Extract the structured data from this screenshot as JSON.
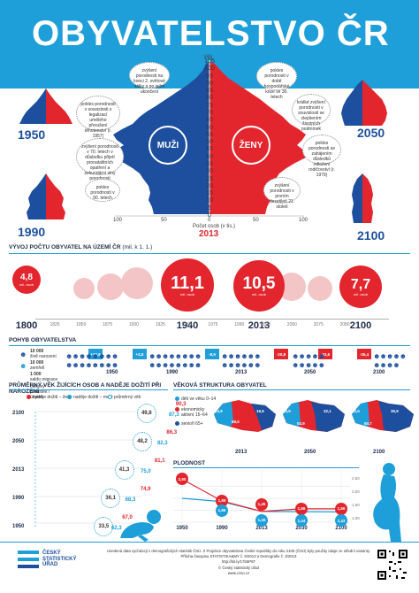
{
  "title": "OBYVATELSTVO ČR",
  "pyramid": {
    "men_label": "MUŽI",
    "women_label": "ŽENY",
    "age_axis_title": "Věk",
    "ages": [
      "105",
      "100",
      "95",
      "90",
      "85",
      "80",
      "75",
      "70",
      "65",
      "60",
      "55",
      "50",
      "45",
      "40",
      "35",
      "30",
      "25",
      "20",
      "15",
      "10",
      "5",
      "0"
    ],
    "bottom_axis": [
      "100",
      "50",
      "0",
      "50",
      "100"
    ],
    "bottom_axis_title": "Počet osob (v tis.)",
    "main_year": "2013",
    "corner_years": {
      "top_left": "1950",
      "top_right": "2050",
      "bottom_left": "1990",
      "bottom_right": "2100"
    },
    "notes": {
      "n1": "zvýšení porodnosti na konci 2. světové války a po jejím ukončení",
      "n2": "pokles porodnosti v souvislosti s legalizací umělého přerušení těhotenství (r. 1957)",
      "n3": "zvýšení porodnosti v 70. letech v důsledku přijetí pronatalitních opatření a sekundární vlny porodnosti",
      "n4": "pokles porodnosti v 90. letech",
      "n5": "pokles porodnosti v době hospodářské krize ve 30. letech",
      "n6": "krátké zvýšení porodnosti v souvislosti se zlepšením životních podmínek",
      "n7": "pokles porodnosti se zahájením důsledků odložení rodičovství (r. 1979)",
      "n8": "zvýšení porodnosti v prvním desetiletí 21. století"
    }
  },
  "timeline": {
    "title": "VÝVOJ POČTU OBYVATEL NA ÚZEMÍ ČR",
    "subtitle": "(mil. k 1. 1.)",
    "years_small": [
      "1825",
      "1850",
      "1875",
      "1900",
      "1925",
      "1950",
      "1975",
      "1990",
      "2025",
      "2050",
      "2075",
      "2080"
    ],
    "years_big": [
      "1800",
      "1940",
      "2013",
      "2100"
    ],
    "bubbles": [
      {
        "value": "4,8",
        "unit": "mil. osob"
      },
      {
        "value": "11,1",
        "unit": "mil. osob"
      },
      {
        "value": "10,5",
        "unit": "mil. osob"
      },
      {
        "value": "7,7",
        "unit": "mil. osob"
      }
    ]
  },
  "movement": {
    "title": "POHYB OBYVATELSTVA",
    "legend": [
      {
        "num": "10 000",
        "text": "živě narození"
      },
      {
        "num": "10 000",
        "text": "zemřelí"
      },
      {
        "num": "1 000",
        "text": "saldo migrace"
      },
      {
        "num": "",
        "text": "celkový přírůstek / úbytek"
      }
    ],
    "flags": [
      "+10,6",
      "+4,8",
      "-8,9",
      "-20,8",
      "-33,6",
      "-35,4"
    ],
    "years": [
      "1950",
      "1990",
      "2013",
      "2050",
      "2100"
    ]
  },
  "ages_section": {
    "title": "PRŮMĚRNÝ VĚK ŽIJÍCÍCH OSOB A NADĚJE DOŽITÍ PŘI NAROZENÍ",
    "legend": [
      "naděje dožití – ženy",
      "naděje dožití – muži",
      "průměrný věk"
    ],
    "rows": [
      {
        "year": "2100",
        "women": "90,3",
        "men": "87,3",
        "avg": "49,8"
      },
      {
        "year": "2050",
        "women": "86,3",
        "men": "82,3",
        "avg": "48,2"
      },
      {
        "year": "2013",
        "women": "81,1",
        "men": "75,0",
        "avg": "41,3"
      },
      {
        "year": "1990",
        "women": "74,9",
        "men": "68,3",
        "avg": "36,1"
      },
      {
        "year": "1950",
        "women": "67,0",
        "men": "62,3",
        "avg": "33,5"
      }
    ]
  },
  "structure": {
    "title": "VĚKOVÁ STRUKTURA OBYVATEL",
    "legend": [
      "děti ve věku 0–14",
      "ekonomicky aktivní 15–64",
      "senioři 65+"
    ],
    "maps": [
      {
        "year": "2013",
        "a": "14,9",
        "b": "68,5",
        "c": "16,6"
      },
      {
        "year": "2050",
        "a": "13,9",
        "b": "53,9",
        "c": "32,1"
      },
      {
        "year": "2100",
        "a": "13,5",
        "b": "50,7",
        "c": "35,9"
      }
    ]
  },
  "fertility": {
    "title": "PLODNOST",
    "years": [
      "1950",
      "1990",
      "2013",
      "2030",
      "2100"
    ],
    "y_labels": [
      "2,50",
      "2,00",
      "1,50",
      "1,00"
    ],
    "red_values": [
      2.8,
      1.89,
      1.45,
      1.56,
      1.56
    ],
    "blue_values": [
      2.0,
      1.86,
      1.45,
      1.44,
      1.43
    ],
    "red_labels": [
      "2,80",
      "1,89",
      "1,45",
      "1,56",
      "1,56"
    ],
    "blue_labels": [
      "",
      "1,86",
      "1,45",
      "1,44",
      "1,43"
    ],
    "ylim": [
      1.0,
      3.0
    ]
  },
  "footer": {
    "logo_l1": "ČESKÝ",
    "logo_l2": "STATISTICKÝ",
    "logo_l3": "ÚŘAD",
    "text1": "Uvedená data vycházejí z demografických statistik ČSÚ. Z Projekce obyvatelstva České republiky do roku 2100 (ČSÚ) byly použity údaje ze střední varianty.",
    "text2": "Příloha časopisu STATISTIKA&MY č. 9/2013 a Demografie č. 3/2013",
    "text3": "http://bit.ly/17b5P6T",
    "text4": "© Český statistický úřad",
    "text5": "www.czso.cz"
  },
  "colors": {
    "blue": "#1e9fd9",
    "navy": "#1d4f9e",
    "red": "#e3262e",
    "pink": "#f4c5c7"
  }
}
